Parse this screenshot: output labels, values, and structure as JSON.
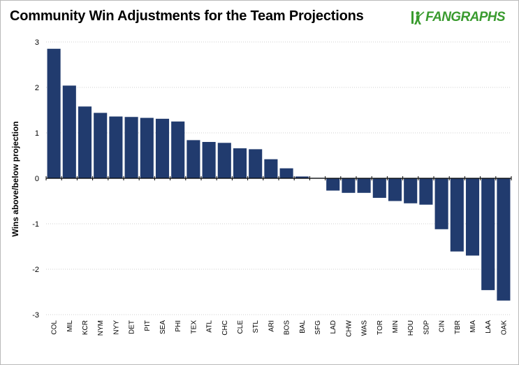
{
  "brand": {
    "text": "FANGRAPHS",
    "color": "#3a9b2f"
  },
  "chart_data": {
    "type": "bar",
    "title": "Community Win Adjustments for the Team Projections",
    "xlabel": "",
    "ylabel": "Wins above/below projection",
    "ylim": [
      -3,
      3
    ],
    "yticks": [
      -3,
      -2,
      -1,
      0,
      1,
      2,
      3
    ],
    "grid": "horizontal dotted",
    "bar_color": "#213b6e",
    "categories": [
      "COL",
      "MIL",
      "KCR",
      "NYM",
      "NYY",
      "DET",
      "PIT",
      "SEA",
      "PHI",
      "TEX",
      "ATL",
      "CHC",
      "CLE",
      "STL",
      "ARI",
      "BOS",
      "BAL",
      "SFG",
      "LAD",
      "CHW",
      "WAS",
      "TOR",
      "MIN",
      "HOU",
      "SDP",
      "CIN",
      "TBR",
      "MIA",
      "LAA",
      "OAK"
    ],
    "values": [
      2.85,
      2.04,
      1.58,
      1.44,
      1.36,
      1.35,
      1.33,
      1.31,
      1.25,
      0.84,
      0.8,
      0.78,
      0.66,
      0.64,
      0.42,
      0.22,
      0.04,
      0.01,
      -0.27,
      -0.32,
      -0.32,
      -0.43,
      -0.5,
      -0.55,
      -0.58,
      -1.12,
      -1.61,
      -1.7,
      -2.46,
      -2.69
    ]
  }
}
